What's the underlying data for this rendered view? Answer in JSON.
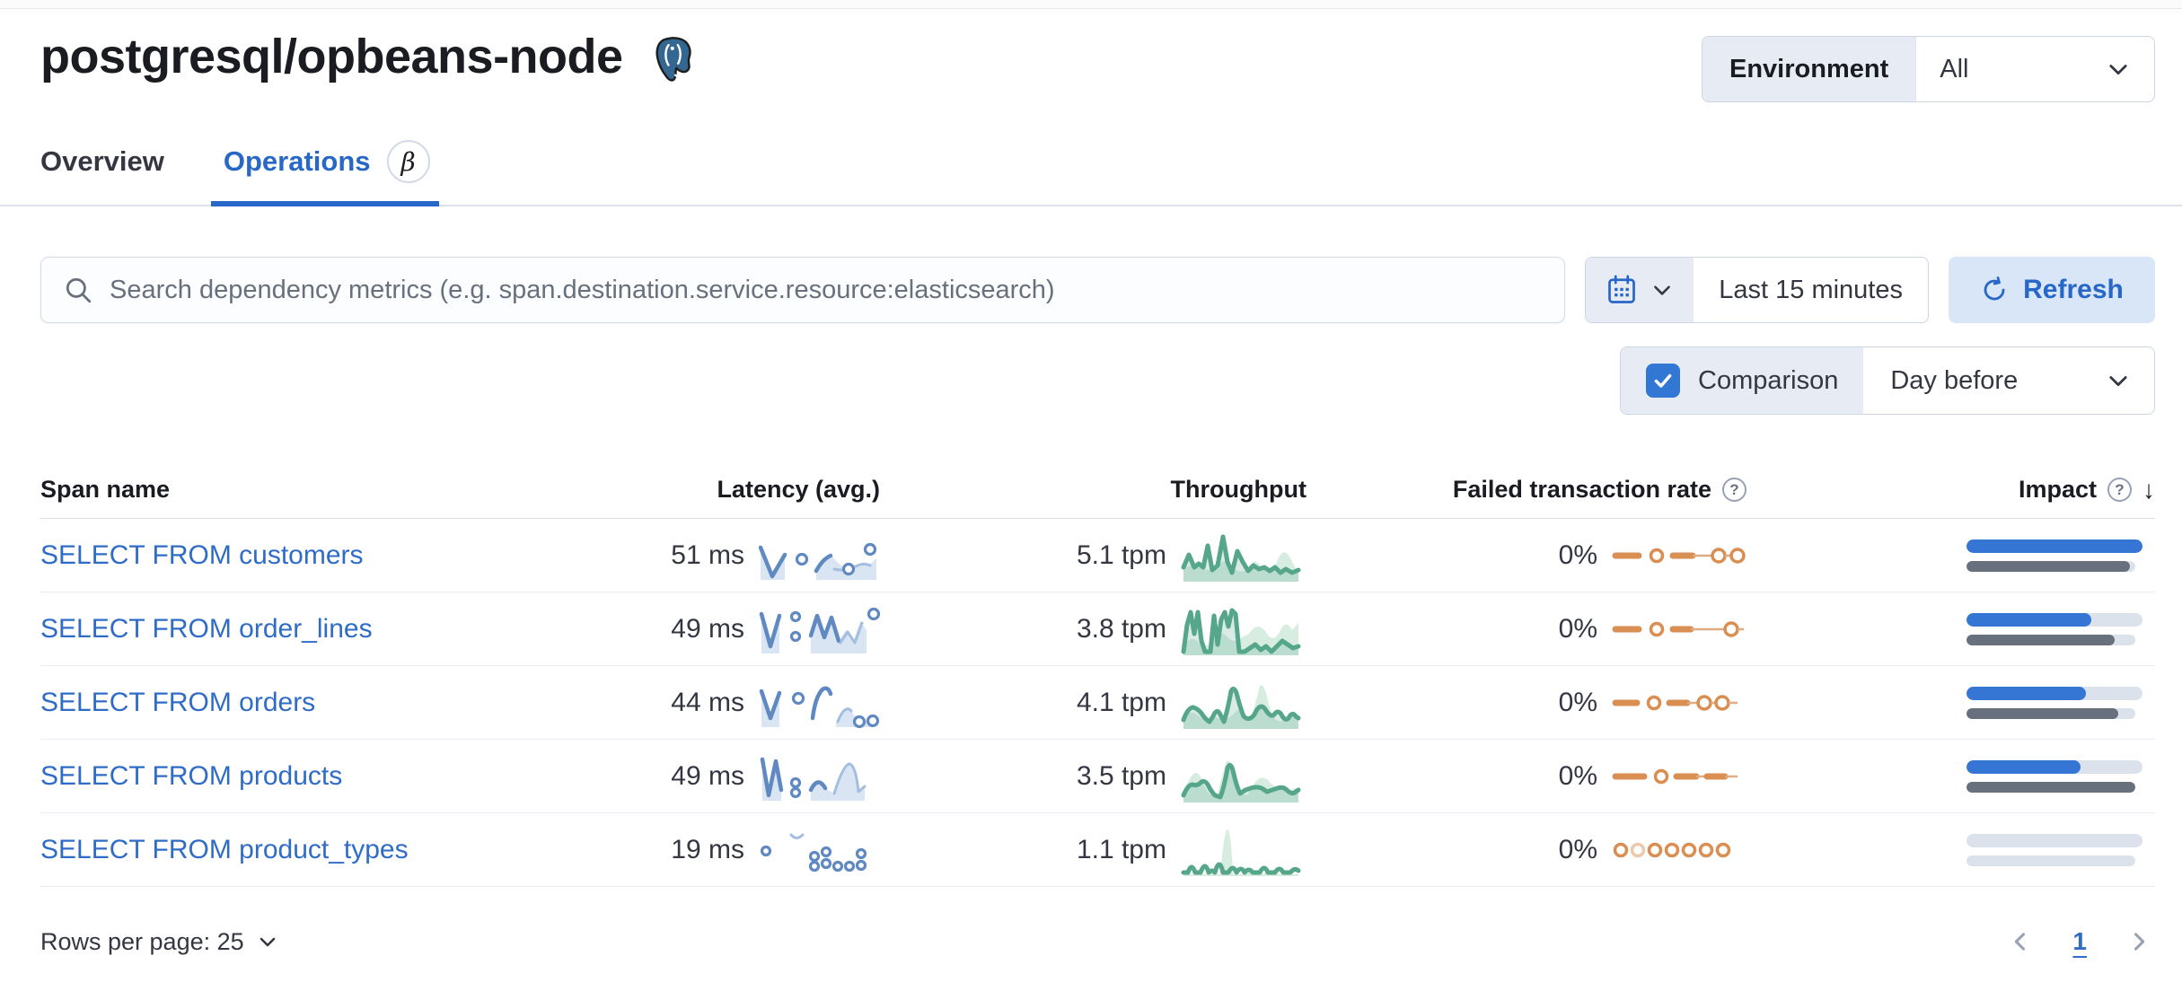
{
  "title": "postgresql/opbeans-node",
  "environment": {
    "label": "Environment",
    "value": "All"
  },
  "tabs": [
    {
      "label": "Overview",
      "active": false
    },
    {
      "label": "Operations",
      "active": true,
      "badge": "β"
    }
  ],
  "toolbar": {
    "search_placeholder": "Search dependency metrics (e.g. span.destination.service.resource:elasticsearch)",
    "time_range": "Last 15 minutes",
    "refresh_label": "Refresh",
    "comparison_label": "Comparison",
    "comparison_value": "Day before"
  },
  "table": {
    "columns": [
      "Span name",
      "Latency (avg.)",
      "Throughput",
      "Failed transaction rate",
      "Impact"
    ],
    "rows": [
      {
        "span_name": "SELECT FROM customers",
        "latency": "51 ms",
        "throughput": "5.1 tpm",
        "failed_rate": "0%",
        "impact_current": 100,
        "impact_previous": 97
      },
      {
        "span_name": "SELECT FROM order_lines",
        "latency": "49 ms",
        "throughput": "3.8 tpm",
        "failed_rate": "0%",
        "impact_current": 71,
        "impact_previous": 88
      },
      {
        "span_name": "SELECT FROM orders",
        "latency": "44 ms",
        "throughput": "4.1 tpm",
        "failed_rate": "0%",
        "impact_current": 68,
        "impact_previous": 90
      },
      {
        "span_name": "SELECT FROM products",
        "latency": "49 ms",
        "throughput": "3.5 tpm",
        "failed_rate": "0%",
        "impact_current": 65,
        "impact_previous": 100
      },
      {
        "span_name": "SELECT FROM product_types",
        "latency": "19 ms",
        "throughput": "1.1 tpm",
        "failed_rate": "0%",
        "impact_current": 0,
        "impact_previous": 0
      }
    ]
  },
  "footer": {
    "rows_per_page": "Rows per page: 25",
    "page_number": "1"
  },
  "colors": {
    "accent_blue": "#2767C8",
    "link_blue": "#2E6CC7",
    "impact_bar_blue": "#3575D4",
    "impact_bar_gray": "#69707D",
    "latency_sparkline": "#6089C2",
    "throughput_sparkline": "#55A68B",
    "failed_rate_sparkline": "#D98E52",
    "postgres_logo_blue": "#336791"
  }
}
